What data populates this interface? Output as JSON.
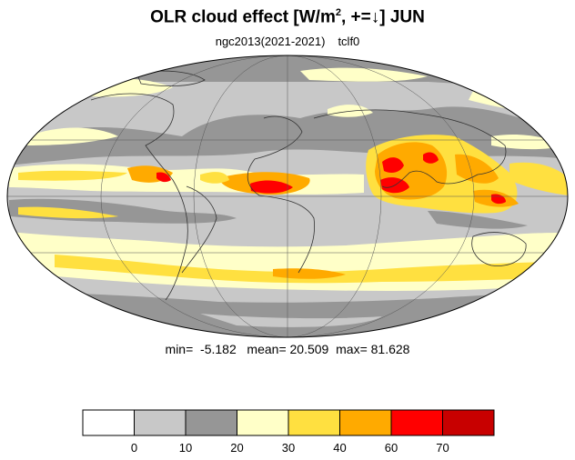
{
  "title": {
    "main": "OLR cloud effect [W/m",
    "sup": "2",
    "rest": ", +=↓]  JUN"
  },
  "subtitle": {
    "run": "ngc2013(2021-2021)",
    "variable": "tclf0"
  },
  "stats": {
    "min_label": "min=",
    "min_value": "-5.182",
    "mean_label": "mean=",
    "mean_value": "20.509",
    "max_label": "max=",
    "max_value": "81.628"
  },
  "colorbar": {
    "colors": [
      "#ffffff",
      "#c8c8c8",
      "#969696",
      "#ffffc8",
      "#ffe040",
      "#ffaa00",
      "#ff0000",
      "#c80000"
    ],
    "ticks": [
      "0",
      "10",
      "20",
      "30",
      "40",
      "60",
      "70"
    ]
  },
  "colors": {
    "ocean_background": "#c8c8c8",
    "gray_dark": "#969696",
    "yellow_light": "#ffffc8",
    "yellow": "#ffe040",
    "orange": "#ffaa00",
    "red": "#ff0000",
    "dark_red": "#c80000",
    "coastline": "#333333"
  }
}
